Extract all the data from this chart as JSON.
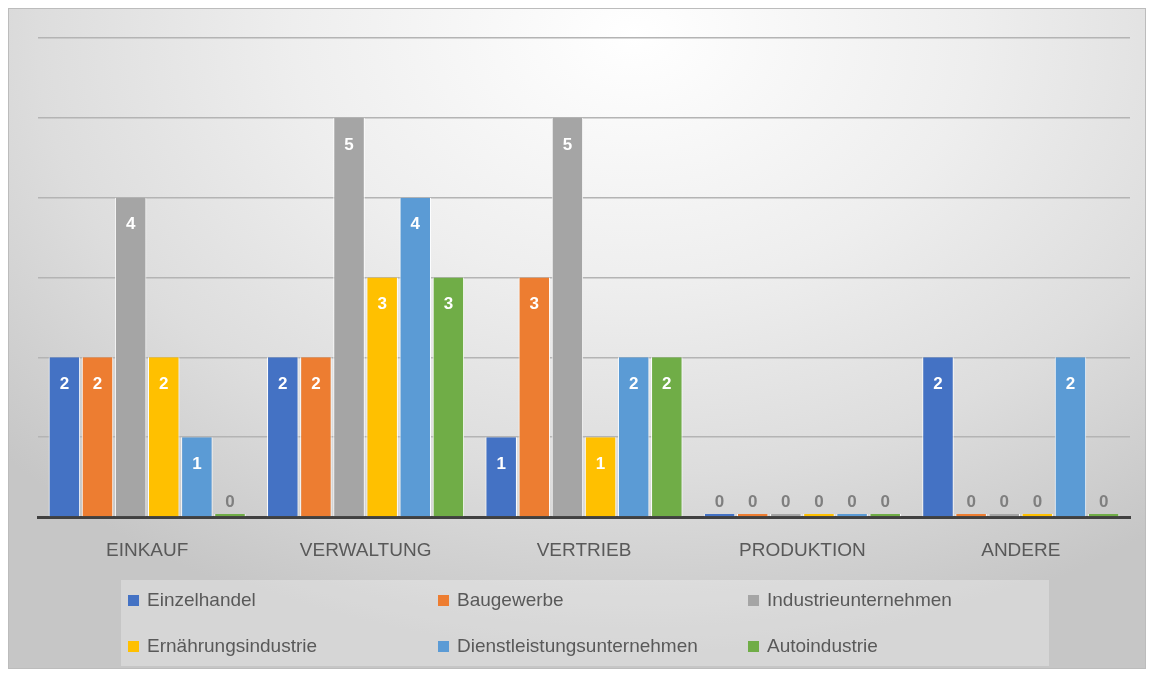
{
  "chart_data": {
    "type": "bar",
    "categories": [
      "EINKAUF",
      "VERWALTUNG",
      "VERTRIEB",
      "PRODUKTION",
      "ANDERE"
    ],
    "series": [
      {
        "name": "Einzelhandel",
        "color": "#4472c4",
        "values": [
          2,
          2,
          1,
          0,
          2
        ]
      },
      {
        "name": "Baugewerbe",
        "color": "#ed7d31",
        "values": [
          2,
          2,
          3,
          0,
          0
        ]
      },
      {
        "name": "Industrieunternehmen",
        "color": "#a5a5a5",
        "values": [
          4,
          5,
          5,
          0,
          0
        ]
      },
      {
        "name": "Ernährungsindustrie",
        "color": "#ffc000",
        "values": [
          2,
          3,
          1,
          0,
          0
        ]
      },
      {
        "name": "Dienstleistungsunternehmen",
        "color": "#5b9bd5",
        "values": [
          1,
          4,
          2,
          0,
          2
        ]
      },
      {
        "name": "Autoindustrie",
        "color": "#70ad47",
        "values": [
          0,
          3,
          2,
          0,
          0
        ]
      }
    ],
    "ylim": [
      0,
      6
    ],
    "yticks": [
      {
        "value": 0,
        "label": null
      },
      {
        "value": 1,
        "label": null
      },
      {
        "value": 2,
        "label": null
      },
      {
        "value": 3,
        "label": null
      },
      {
        "value": 4,
        "label": null
      },
      {
        "value": 5,
        "label": null
      },
      {
        "value": 6,
        "label": null
      }
    ],
    "grid": "y",
    "tick_labels": "x",
    "legend": "bottom",
    "data_labels": true
  }
}
